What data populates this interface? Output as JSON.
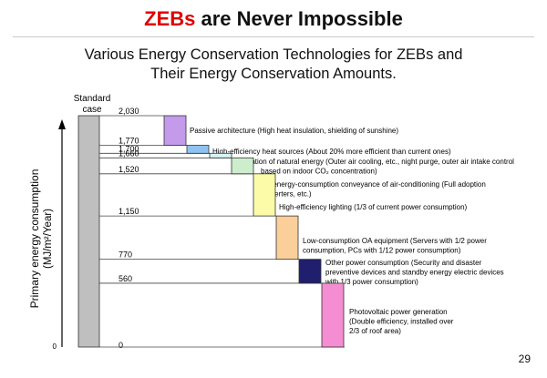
{
  "slide": {
    "title_accent": "ZEBs",
    "title_rest": " are Never Impossible",
    "subtitle_line1": "Various Energy Conservation Technologies for ZEBs and",
    "subtitle_line2": "Their Energy Conservation Amounts.",
    "page_number": "29"
  },
  "chart_data": {
    "type": "bar",
    "style": "waterfall",
    "ylabel": "Primary energy consumption",
    "ylabel_unit": "(MJ/m²/Year)",
    "y_zero_label": "0",
    "ylim": [
      0,
      2030
    ],
    "standard_case": {
      "label_line1": "Standard",
      "label_line2": "case",
      "value": 2030,
      "color": "#bfbfbf"
    },
    "tick_labels": [
      "2,030",
      "1,770",
      "1,700",
      "1,660",
      "1,520",
      "1,150",
      "770",
      "560",
      "0"
    ],
    "tick_values": [
      2030,
      1770,
      1700,
      1660,
      1520,
      1150,
      770,
      560,
      0
    ],
    "steps": [
      {
        "from": 2030,
        "to": 1770,
        "color": "#c39bea",
        "desc": [
          "Passive architecture (High heat insulation, shielding of sunshine)"
        ]
      },
      {
        "from": 1770,
        "to": 1700,
        "color": "#8ec3ef",
        "desc": [
          "High-efficiency heat sources (About 20% more efficient than current ones)"
        ]
      },
      {
        "from": 1700,
        "to": 1660,
        "color": "#d7f5f7",
        "desc": [
          "Utilization of natural energy (Outer air cooling, etc., night purge, outer air intake control",
          "based on indoor CO₂ concentration)"
        ]
      },
      {
        "from": 1660,
        "to": 1520,
        "color": "#cdeecd",
        "desc": [
          "Low-energy-consumption conveyance of air-conditioning (Full adoption",
          "of inverters, etc.)"
        ]
      },
      {
        "from": 1520,
        "to": 1150,
        "color": "#fbfba8",
        "desc": [
          "High-efficiency lighting (1/3 of current power consumption)"
        ]
      },
      {
        "from": 1150,
        "to": 770,
        "color": "#fbcf9a",
        "desc": [
          "Low-consumption OA equipment (Servers with 1/2 power",
          "consumption, PCs with 1/12 power consumption)"
        ]
      },
      {
        "from": 770,
        "to": 560,
        "color": "#1f1f6e",
        "desc": [
          "Other power consumption (Security and disaster",
          "preventive devices and standby energy electric devices",
          "with 1/3 power consumption)"
        ]
      },
      {
        "from": 560,
        "to": 0,
        "color": "#f58dd2",
        "desc": [
          "Photovoltaic power generation",
          "(Double efficiency, installed over",
          "2/3 of roof area)"
        ]
      }
    ]
  }
}
